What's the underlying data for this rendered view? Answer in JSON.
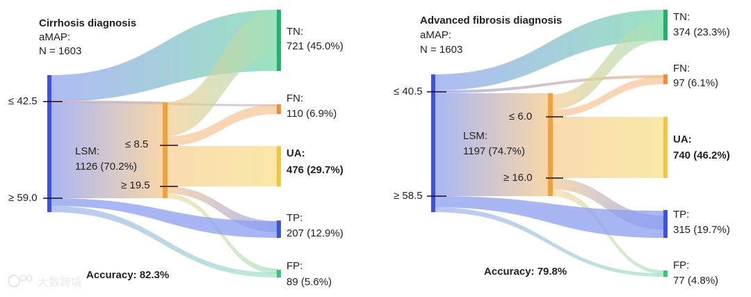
{
  "watermark": "大数跨境",
  "panels": [
    {
      "title": "Cirrhosis diagnosis",
      "score_label": "aMAP:",
      "n_label": "N = 1603",
      "score_low": "≤ 42.5",
      "score_high": "≥ 59.0",
      "lsm_title": "LSM:",
      "lsm_count": "1126 (70.2%)",
      "lsm_low": "≤ 8.5",
      "lsm_high": "≥ 19.5",
      "accuracy": "Accuracy: 82.3%",
      "outcomes": [
        {
          "label": "TN:",
          "value": "721 (45.0%)",
          "color": "#21b36c"
        },
        {
          "label": "FN:",
          "value": "110 (6.9%)",
          "color": "#f08a3c"
        },
        {
          "label": "UA:",
          "value": "476 (29.7%)",
          "color": "#f2c53d"
        },
        {
          "label": "TP:",
          "value": "207 (12.9%)",
          "color": "#3b55d6"
        },
        {
          "label": "FP:",
          "value": "89 (5.6%)",
          "color": "#39c47a"
        }
      ]
    },
    {
      "title": "Advanced fibrosis diagnosis",
      "score_label": "aMAP:",
      "n_label": "N = 1603",
      "score_low": "≤ 40.5",
      "score_high": "≥ 58.5",
      "lsm_title": "LSM:",
      "lsm_count": "1197 (74.7%)",
      "lsm_low": "≤ 6.0",
      "lsm_high": "≥ 16.0",
      "accuracy": "Accuracy: 79.8%",
      "outcomes": [
        {
          "label": "TN:",
          "value": "374 (23.3%)",
          "color": "#21b36c"
        },
        {
          "label": "FN:",
          "value": "97 (6.1%)",
          "color": "#f08a3c"
        },
        {
          "label": "UA:",
          "value": "740 (46.2%)",
          "color": "#f2c53d"
        },
        {
          "label": "TP:",
          "value": "315 (19.7%)",
          "color": "#3b55d6"
        },
        {
          "label": "FP:",
          "value": "77 (4.8%)",
          "color": "#39c47a"
        }
      ]
    }
  ],
  "colors": {
    "amap_node": "#3f51e0",
    "lsm_node": "#f0a23c",
    "flow_blue": "#8c9ef0",
    "flow_orange": "#f6c98a"
  }
}
